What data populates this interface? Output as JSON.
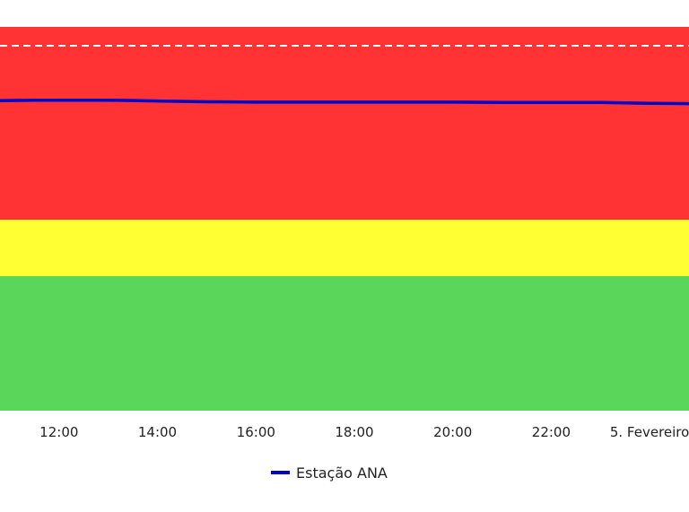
{
  "chart_data": {
    "type": "line",
    "title": "",
    "xlabel": "",
    "ylabel": "",
    "x_ticks": [
      "12:00",
      "14:00",
      "16:00",
      "18:00",
      "20:00",
      "22:00",
      "5. Fevereiro"
    ],
    "x_range": [
      10.8,
      24.8
    ],
    "bands": [
      {
        "level": "green",
        "color": "#5ad75a"
      },
      {
        "level": "yellow",
        "color": "#ffff33"
      },
      {
        "level": "red",
        "color": "#ff3333"
      }
    ],
    "threshold_line": {
      "style": "dashed",
      "color": "#ffffff"
    },
    "series": [
      {
        "name": "Estação ANA",
        "color": "#0000cc",
        "x": [
          10.8,
          11.5,
          12.3,
          13.0,
          14.0,
          15.0,
          16.0,
          17.0,
          18.0,
          18.5,
          19.0,
          20.0,
          21.0,
          22.0,
          23.0,
          24.0,
          24.8
        ],
        "y_level_fraction": [
          0.808,
          0.809,
          0.809,
          0.809,
          0.807,
          0.805,
          0.804,
          0.804,
          0.804,
          0.804,
          0.804,
          0.804,
          0.803,
          0.803,
          0.803,
          0.801,
          0.8
        ]
      }
    ],
    "legend": {
      "position": "bottom-center",
      "entries": [
        "Estação ANA"
      ]
    },
    "grid": false
  }
}
